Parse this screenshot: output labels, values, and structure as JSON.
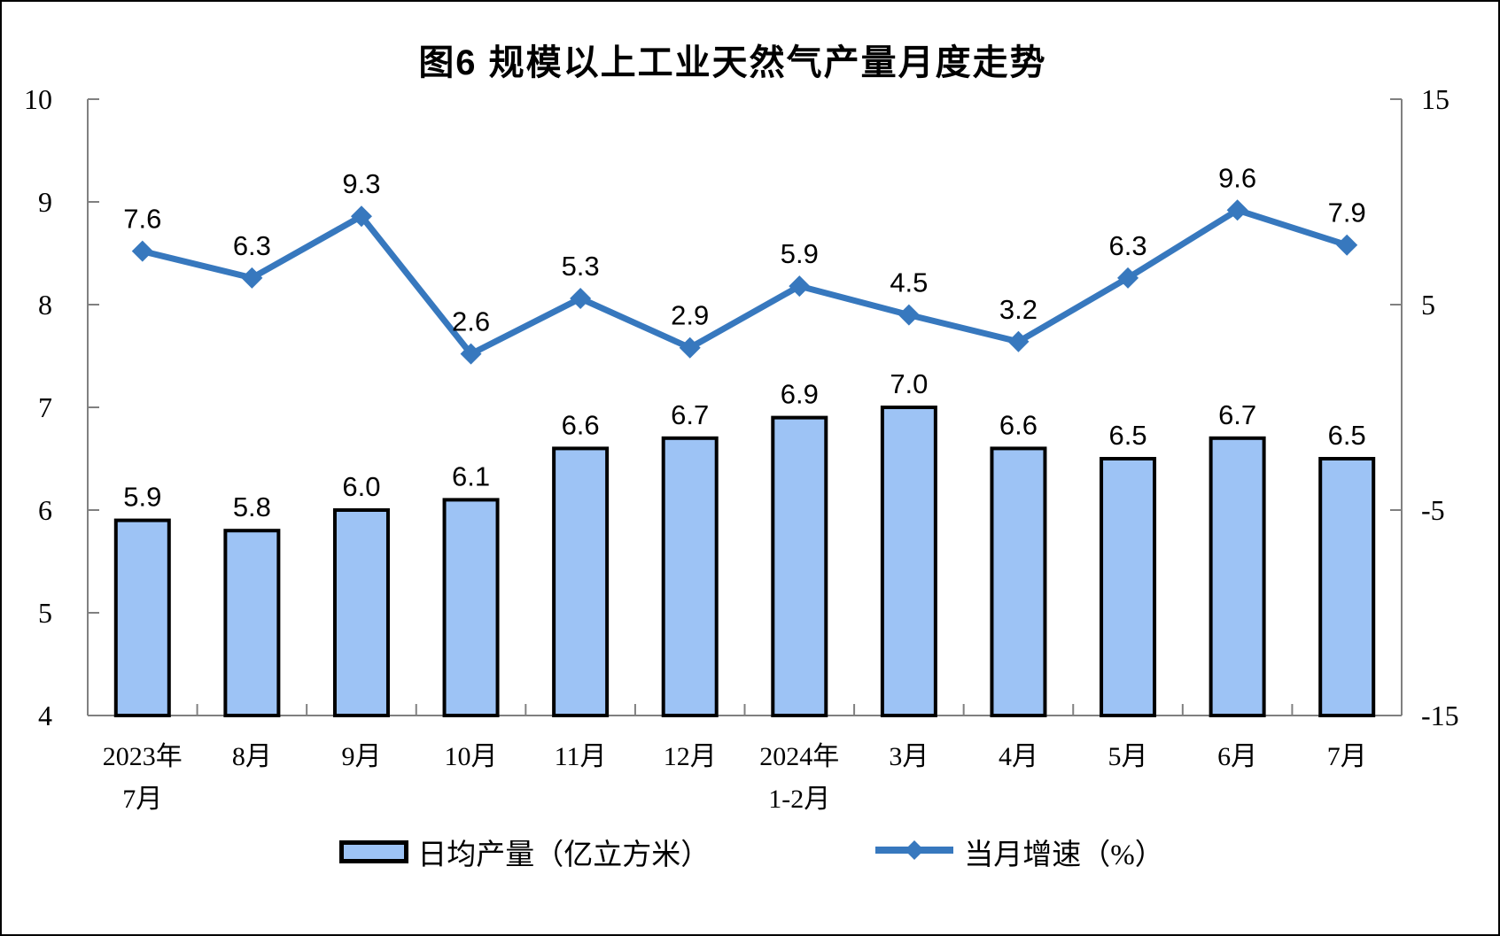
{
  "chart_data": {
    "type": "combo",
    "title": "图6 规模以上工业天然气产量月度走势",
    "categories": [
      "2023年\n7月",
      "8月",
      "9月",
      "10月",
      "11月",
      "12月",
      "2024年\n1-2月",
      "3月",
      "4月",
      "5月",
      "6月",
      "7月"
    ],
    "series": [
      {
        "name": "日均产量（亿立方米）",
        "type": "bar",
        "axis": "left",
        "values": [
          5.9,
          5.8,
          6.0,
          6.1,
          6.6,
          6.7,
          6.9,
          7.0,
          6.6,
          6.5,
          6.7,
          6.5
        ]
      },
      {
        "name": "当月增速（%）",
        "type": "line",
        "axis": "right",
        "values": [
          7.6,
          6.3,
          9.3,
          2.6,
          5.3,
          2.9,
          5.9,
          4.5,
          3.2,
          6.3,
          9.6,
          7.9
        ]
      }
    ],
    "left_axis": {
      "min": 4,
      "max": 10,
      "ticks": [
        4,
        5,
        6,
        7,
        8,
        9,
        10
      ]
    },
    "right_axis": {
      "min": -15,
      "max": 15,
      "ticks": [
        -15,
        -5,
        5,
        15
      ]
    },
    "grid": false,
    "legend_position": "bottom",
    "colors": {
      "bar_fill": "#9DC3F5",
      "bar_border": "#000000",
      "line": "#3778BE",
      "axis_line": "#808080",
      "text": "#000000"
    }
  },
  "legend": {
    "items": [
      {
        "label": "日均产量（亿立方米）",
        "swatch": "bar"
      },
      {
        "label": "当月增速（%）",
        "swatch": "line-diamond"
      }
    ]
  }
}
